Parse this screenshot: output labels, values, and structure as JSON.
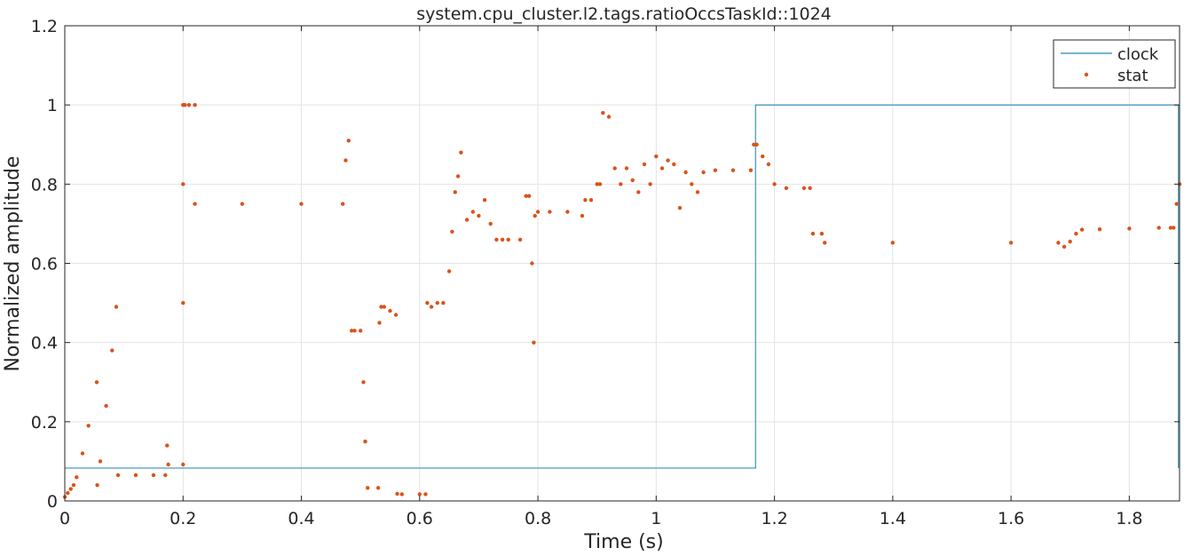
{
  "chart_data": {
    "type": "line",
    "title": "system.cpu_cluster.l2.tags.ratioOccsTaskId::1024",
    "xlabel": "Time (s)",
    "ylabel": "Normalized amplitude",
    "xlim": [
      0,
      1.885
    ],
    "ylim": [
      0,
      1.2
    ],
    "xticks": [
      0,
      0.2,
      0.4,
      0.6,
      0.8,
      1,
      1.2,
      1.4,
      1.6,
      1.8
    ],
    "xtick_labels": [
      "0",
      "0.2",
      "0.4",
      "0.6",
      "0.8",
      "1",
      "1.2",
      "1.4",
      "1.6",
      "1.8"
    ],
    "yticks": [
      0,
      0.2,
      0.4,
      0.6,
      0.8,
      1,
      1.2
    ],
    "ytick_labels": [
      "0",
      "0.2",
      "0.4",
      "0.6",
      "0.8",
      "1",
      "1.2"
    ],
    "grid": true,
    "legend_position": "top-right",
    "series": [
      {
        "name": "clock",
        "style": "step-line",
        "color": "#4A9BC0",
        "x": [
          0,
          1.168,
          1.168,
          1.883,
          1.883
        ],
        "y": [
          0.083,
          0.083,
          1.0,
          1.0,
          0.083
        ]
      },
      {
        "name": "stat",
        "style": "dots",
        "color": "#D95319",
        "x": [
          0.0,
          0.005,
          0.01,
          0.015,
          0.02,
          0.03,
          0.04,
          0.054,
          0.055,
          0.06,
          0.07,
          0.08,
          0.087,
          0.09,
          0.12,
          0.15,
          0.17,
          0.173,
          0.175,
          0.2,
          0.2,
          0.2,
          0.2,
          0.203,
          0.21,
          0.22,
          0.22,
          0.3,
          0.4,
          0.47,
          0.475,
          0.48,
          0.485,
          0.49,
          0.5,
          0.505,
          0.508,
          0.512,
          0.53,
          0.532,
          0.535,
          0.54,
          0.55,
          0.56,
          0.562,
          0.57,
          0.6,
          0.61,
          0.613,
          0.62,
          0.63,
          0.64,
          0.65,
          0.655,
          0.66,
          0.665,
          0.67,
          0.68,
          0.69,
          0.7,
          0.71,
          0.72,
          0.73,
          0.74,
          0.75,
          0.77,
          0.78,
          0.785,
          0.79,
          0.793,
          0.795,
          0.8,
          0.82,
          0.85,
          0.875,
          0.88,
          0.89,
          0.9,
          0.905,
          0.91,
          0.92,
          0.93,
          0.94,
          0.95,
          0.96,
          0.97,
          0.98,
          0.99,
          1.0,
          1.01,
          1.02,
          1.03,
          1.04,
          1.05,
          1.06,
          1.07,
          1.08,
          1.1,
          1.13,
          1.16,
          1.165,
          1.17,
          1.18,
          1.19,
          1.2,
          1.22,
          1.25,
          1.26,
          1.265,
          1.28,
          1.285,
          1.4,
          1.6,
          1.68,
          1.69,
          1.7,
          1.71,
          1.72,
          1.75,
          1.8,
          1.85,
          1.87,
          1.875,
          1.88,
          1.885
        ],
        "y": [
          0.01,
          0.02,
          0.03,
          0.04,
          0.06,
          0.12,
          0.19,
          0.3,
          0.04,
          0.1,
          0.24,
          0.38,
          0.49,
          0.065,
          0.065,
          0.065,
          0.065,
          0.14,
          0.092,
          0.092,
          0.5,
          0.8,
          1.0,
          1.0,
          1.0,
          1.0,
          0.75,
          0.75,
          0.75,
          0.75,
          0.86,
          0.91,
          0.43,
          0.43,
          0.43,
          0.3,
          0.15,
          0.033,
          0.033,
          0.45,
          0.49,
          0.49,
          0.48,
          0.47,
          0.018,
          0.017,
          0.017,
          0.017,
          0.5,
          0.49,
          0.5,
          0.5,
          0.58,
          0.68,
          0.78,
          0.82,
          0.88,
          0.71,
          0.73,
          0.72,
          0.76,
          0.7,
          0.66,
          0.66,
          0.66,
          0.66,
          0.77,
          0.77,
          0.6,
          0.4,
          0.72,
          0.73,
          0.73,
          0.73,
          0.72,
          0.76,
          0.76,
          0.8,
          0.8,
          0.98,
          0.97,
          0.84,
          0.8,
          0.84,
          0.81,
          0.78,
          0.85,
          0.8,
          0.87,
          0.84,
          0.86,
          0.85,
          0.74,
          0.83,
          0.8,
          0.78,
          0.83,
          0.835,
          0.835,
          0.835,
          0.9,
          0.9,
          0.87,
          0.85,
          0.8,
          0.79,
          0.79,
          0.79,
          0.675,
          0.675,
          0.652,
          0.652,
          0.652,
          0.652,
          0.642,
          0.655,
          0.675,
          0.685,
          0.686,
          0.688,
          0.69,
          0.69,
          0.69,
          0.75,
          0.8
        ]
      }
    ]
  }
}
